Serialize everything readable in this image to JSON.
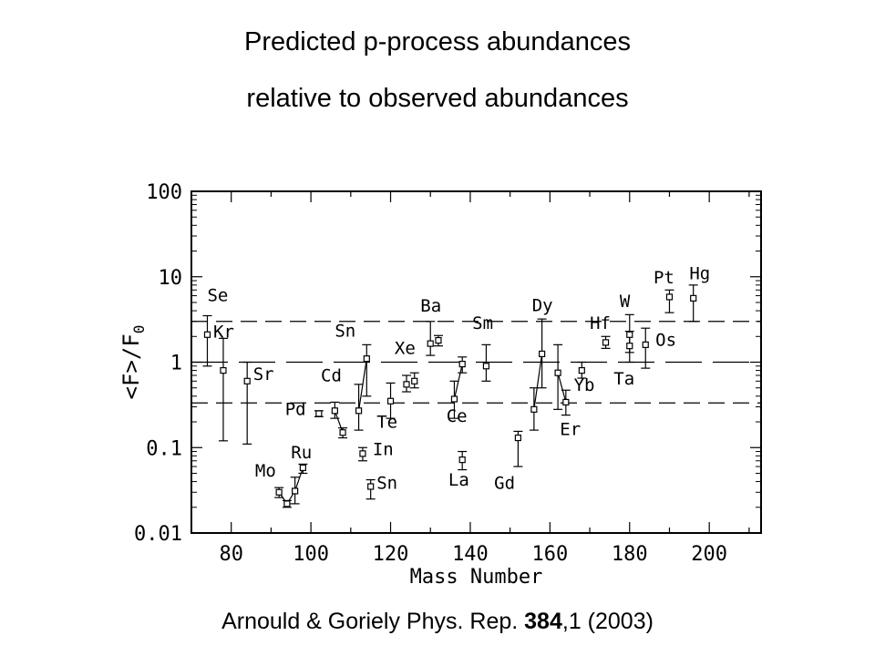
{
  "title_line1": "Predicted p-process abundances",
  "title_line2": "relative to observed abundances",
  "citation": {
    "prefix": "Arnould & Goriely Phys. Rep. ",
    "volume": "384",
    "suffix": ",1 (2003)"
  },
  "chart_data": {
    "type": "scatter",
    "xlabel": "Mass Number",
    "ylabel": "<F>/F0",
    "xlim": [
      70,
      213
    ],
    "ylim": [
      0.01,
      100
    ],
    "yscale": "log",
    "x_ticks": [
      80,
      100,
      120,
      140,
      160,
      180,
      200
    ],
    "y_ticks": [
      {
        "value": 100,
        "label": "100"
      },
      {
        "value": 10,
        "label": "10"
      },
      {
        "value": 1,
        "label": "1"
      },
      {
        "value": 0.1,
        "label": "0.1"
      },
      {
        "value": 0.01,
        "label": "0.01"
      }
    ],
    "reference_lines": [
      {
        "y": 1,
        "style": "long-dash"
      },
      {
        "y": 3,
        "style": "dashed"
      },
      {
        "y": 0.333,
        "style": "dashed"
      }
    ],
    "points": [
      {
        "x": 74,
        "y": 2.1,
        "lo": 0.9,
        "hi": 3.5
      },
      {
        "x": 78,
        "y": 0.8,
        "lo": 0.12,
        "hi": 1.9
      },
      {
        "x": 84,
        "y": 0.6,
        "lo": 0.11,
        "hi": 1.0
      },
      {
        "x": 92,
        "y": 0.03,
        "lo": 0.026,
        "hi": 0.034
      },
      {
        "x": 94,
        "y": 0.022,
        "lo": 0.02,
        "hi": 0.024
      },
      {
        "x": 96,
        "y": 0.031,
        "lo": 0.022,
        "hi": 0.045
      },
      {
        "x": 98,
        "y": 0.058,
        "lo": 0.05,
        "hi": 0.064
      },
      {
        "x": 102,
        "y": 0.25,
        "lo": 0.23,
        "hi": 0.27
      },
      {
        "x": 106,
        "y": 0.27,
        "lo": 0.22,
        "hi": 0.34
      },
      {
        "x": 108,
        "y": 0.15,
        "lo": 0.13,
        "hi": 0.17
      },
      {
        "x": 112,
        "y": 0.27,
        "lo": 0.16,
        "hi": 0.55
      },
      {
        "x": 113,
        "y": 0.085,
        "lo": 0.07,
        "hi": 0.1
      },
      {
        "x": 114,
        "y": 1.1,
        "lo": 0.4,
        "hi": 1.6
      },
      {
        "x": 115,
        "y": 0.035,
        "lo": 0.025,
        "hi": 0.042
      },
      {
        "x": 120,
        "y": 0.35,
        "lo": 0.22,
        "hi": 0.57
      },
      {
        "x": 124,
        "y": 0.55,
        "lo": 0.45,
        "hi": 0.7
      },
      {
        "x": 126,
        "y": 0.6,
        "lo": 0.5,
        "hi": 0.75
      },
      {
        "x": 130,
        "y": 1.65,
        "lo": 1.2,
        "hi": 3.0
      },
      {
        "x": 132,
        "y": 1.8,
        "lo": 1.55,
        "hi": 2.05
      },
      {
        "x": 136,
        "y": 0.37,
        "lo": 0.22,
        "hi": 0.6
      },
      {
        "x": 138,
        "y": 0.95,
        "lo": 0.75,
        "hi": 1.15
      },
      {
        "x": 138,
        "y": 0.072,
        "lo": 0.055,
        "hi": 0.09
      },
      {
        "x": 144,
        "y": 0.9,
        "lo": 0.6,
        "hi": 1.6
      },
      {
        "x": 152,
        "y": 0.13,
        "lo": 0.06,
        "hi": 0.155
      },
      {
        "x": 156,
        "y": 0.28,
        "lo": 0.16,
        "hi": 0.5
      },
      {
        "x": 158,
        "y": 1.25,
        "lo": 0.5,
        "hi": 3.2
      },
      {
        "x": 162,
        "y": 0.75,
        "lo": 0.28,
        "hi": 1.6
      },
      {
        "x": 164,
        "y": 0.34,
        "lo": 0.24,
        "hi": 0.47
      },
      {
        "x": 168,
        "y": 0.8,
        "lo": 0.65,
        "hi": 1.0
      },
      {
        "x": 174,
        "y": 1.7,
        "lo": 1.45,
        "hi": 2.0
      },
      {
        "x": 180,
        "y": 1.55,
        "lo": 1.0,
        "hi": 2.3
      },
      {
        "x": 180,
        "y": 2.1,
        "lo": 1.3,
        "hi": 3.6
      },
      {
        "x": 184,
        "y": 1.6,
        "lo": 0.85,
        "hi": 2.5
      },
      {
        "x": 190,
        "y": 5.8,
        "lo": 3.8,
        "hi": 7.0
      },
      {
        "x": 196,
        "y": 5.6,
        "lo": 3.0,
        "hi": 8.0
      }
    ],
    "connections": [
      [
        92,
        0.03,
        94,
        0.022
      ],
      [
        94,
        0.022,
        96,
        0.031
      ],
      [
        96,
        0.031,
        98,
        0.058
      ],
      [
        106,
        0.27,
        108,
        0.15
      ],
      [
        112,
        0.27,
        114,
        1.1
      ],
      [
        136,
        0.37,
        138,
        0.95
      ],
      [
        156,
        0.28,
        158,
        1.25
      ],
      [
        162,
        0.75,
        164,
        0.34
      ]
    ],
    "element_labels": [
      {
        "text": "Se",
        "x": 74,
        "y": 5.2
      },
      {
        "text": "Kr",
        "x": 75.5,
        "y": 1.95
      },
      {
        "text": "Sr",
        "x": 85.5,
        "y": 0.62
      },
      {
        "text": "Mo",
        "x": 86,
        "y": 0.046
      },
      {
        "text": "Ru",
        "x": 95,
        "y": 0.075
      },
      {
        "text": "Pd",
        "x": 93.5,
        "y": 0.24
      },
      {
        "text": "Cd",
        "x": 102.5,
        "y": 0.6
      },
      {
        "text": "Sn",
        "x": 106,
        "y": 2.0
      },
      {
        "text": "In",
        "x": 115.5,
        "y": 0.082
      },
      {
        "text": "Sn",
        "x": 116.5,
        "y": 0.033
      },
      {
        "text": "Te",
        "x": 116.5,
        "y": 0.17
      },
      {
        "text": "Xe",
        "x": 121,
        "y": 1.25
      },
      {
        "text": "Ba",
        "x": 127.5,
        "y": 3.9
      },
      {
        "text": "Sm",
        "x": 140.5,
        "y": 2.45
      },
      {
        "text": "Ce",
        "x": 134,
        "y": 0.2
      },
      {
        "text": "La",
        "x": 134.5,
        "y": 0.036
      },
      {
        "text": "Gd",
        "x": 146,
        "y": 0.033
      },
      {
        "text": "Dy",
        "x": 155.5,
        "y": 3.95
      },
      {
        "text": "Er",
        "x": 162.5,
        "y": 0.14
      },
      {
        "text": "Yb",
        "x": 166,
        "y": 0.46
      },
      {
        "text": "Hf",
        "x": 170,
        "y": 2.45
      },
      {
        "text": "W",
        "x": 177.5,
        "y": 4.4
      },
      {
        "text": "Ta",
        "x": 176,
        "y": 0.55
      },
      {
        "text": "Os",
        "x": 186.5,
        "y": 1.55
      },
      {
        "text": "Pt",
        "x": 186,
        "y": 8.4
      },
      {
        "text": "Hg",
        "x": 195,
        "y": 9.3
      }
    ]
  }
}
